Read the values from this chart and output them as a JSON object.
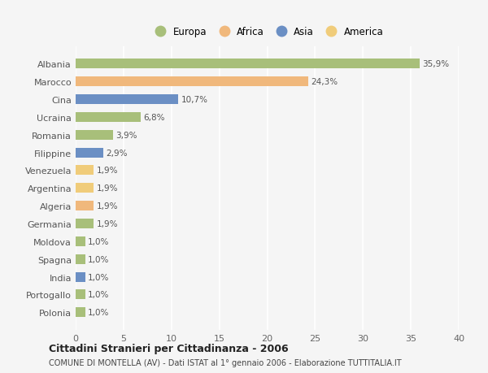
{
  "categories": [
    "Albania",
    "Marocco",
    "Cina",
    "Ucraina",
    "Romania",
    "Filippine",
    "Venezuela",
    "Argentina",
    "Algeria",
    "Germania",
    "Moldova",
    "Spagna",
    "India",
    "Portogallo",
    "Polonia"
  ],
  "values": [
    35.9,
    24.3,
    10.7,
    6.8,
    3.9,
    2.9,
    1.9,
    1.9,
    1.9,
    1.9,
    1.0,
    1.0,
    1.0,
    1.0,
    1.0
  ],
  "labels": [
    "35,9%",
    "24,3%",
    "10,7%",
    "6,8%",
    "3,9%",
    "2,9%",
    "1,9%",
    "1,9%",
    "1,9%",
    "1,9%",
    "1,0%",
    "1,0%",
    "1,0%",
    "1,0%",
    "1,0%"
  ],
  "colors": [
    "#a8bf7a",
    "#f0b87c",
    "#6b8fc4",
    "#a8bf7a",
    "#a8bf7a",
    "#6b8fc4",
    "#f0cc7a",
    "#f0cc7a",
    "#f0b87c",
    "#a8bf7a",
    "#a8bf7a",
    "#a8bf7a",
    "#6b8fc4",
    "#a8bf7a",
    "#a8bf7a"
  ],
  "legend_labels": [
    "Europa",
    "Africa",
    "Asia",
    "America"
  ],
  "legend_colors": [
    "#a8bf7a",
    "#f0b87c",
    "#6b8fc4",
    "#f0cc7a"
  ],
  "title": "Cittadini Stranieri per Cittadinanza - 2006",
  "subtitle": "COMUNE DI MONTELLA (AV) - Dati ISTAT al 1° gennaio 2006 - Elaborazione TUTTITALIA.IT",
  "xlim": [
    0,
    40
  ],
  "xticks": [
    0,
    5,
    10,
    15,
    20,
    25,
    30,
    35,
    40
  ],
  "background_color": "#f5f5f5",
  "grid_color": "#ffffff",
  "bar_height": 0.55
}
